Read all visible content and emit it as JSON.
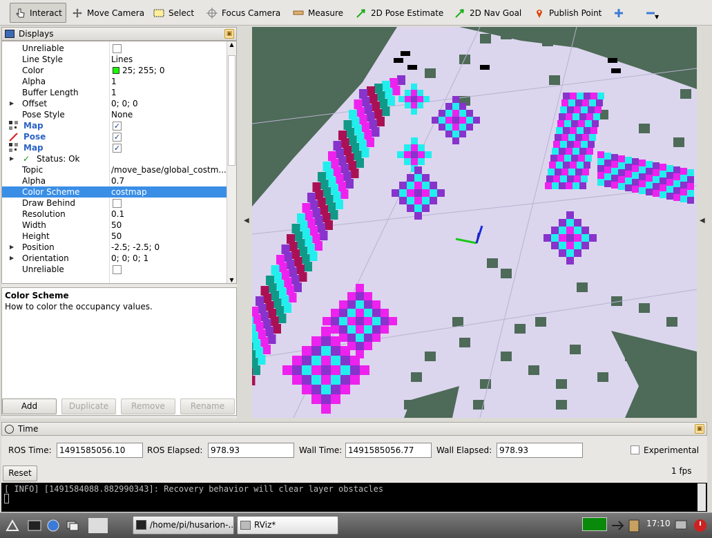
{
  "toolbar": {
    "items": [
      {
        "label": "Interact",
        "icon": "hand-cursor-icon",
        "active": true
      },
      {
        "label": "Move Camera",
        "icon": "move-camera-icon"
      },
      {
        "label": "Select",
        "icon": "select-box-icon"
      },
      {
        "label": "Focus Camera",
        "icon": "crosshair-icon"
      },
      {
        "label": "Measure",
        "icon": "ruler-icon"
      },
      {
        "label": "2D Pose Estimate",
        "icon": "green-arrow-icon"
      },
      {
        "label": "2D Nav Goal",
        "icon": "green-arrow-icon"
      },
      {
        "label": "Publish Point",
        "icon": "map-pin-icon"
      }
    ],
    "add_icon": "plus-icon",
    "remove_icon": "minus-icon"
  },
  "displays": {
    "title": "Displays",
    "rows": [
      {
        "label": "Unreliable",
        "type": "checkbox",
        "checked": false
      },
      {
        "label": "Line Style",
        "value": "Lines"
      },
      {
        "label": "Color",
        "value": "25; 255; 0",
        "swatch": "#19ff00"
      },
      {
        "label": "Alpha",
        "value": "1"
      },
      {
        "label": "Buffer Length",
        "value": "1"
      },
      {
        "label": "Offset",
        "value": "0; 0; 0",
        "expandable": true
      },
      {
        "label": "Pose Style",
        "value": "None"
      },
      {
        "label": "Map",
        "type": "checkbox",
        "checked": true,
        "display": true,
        "icon": "map-grid-icon"
      },
      {
        "label": "Pose",
        "type": "checkbox",
        "checked": true,
        "display": true,
        "icon": "pose-arrow-icon"
      },
      {
        "label": "Map",
        "type": "checkbox",
        "checked": true,
        "display": true,
        "icon": "map-grid-icon"
      },
      {
        "label": "Status: Ok",
        "expandable": true,
        "status": true
      },
      {
        "label": "Topic",
        "value": "/move_base/global_costm..."
      },
      {
        "label": "Alpha",
        "value": "0.7"
      },
      {
        "label": "Color Scheme",
        "value": "costmap",
        "selected": true
      },
      {
        "label": "Draw Behind",
        "type": "checkbox",
        "checked": false
      },
      {
        "label": "Resolution",
        "value": "0.1"
      },
      {
        "label": "Width",
        "value": "50"
      },
      {
        "label": "Height",
        "value": "50"
      },
      {
        "label": "Position",
        "value": "-2.5; -2.5; 0",
        "expandable": true
      },
      {
        "label": "Orientation",
        "value": "0; 0; 0; 1",
        "expandable": true
      },
      {
        "label": "Unreliable",
        "type": "checkbox",
        "checked": false
      }
    ],
    "description_title": "Color Scheme",
    "description_text": "How to color the occupancy values.",
    "buttons": {
      "add": "Add",
      "duplicate": "Duplicate",
      "remove": "Remove",
      "rename": "Rename"
    }
  },
  "time": {
    "title": "Time",
    "ros_time_label": "ROS Time:",
    "ros_time": "1491585056.10",
    "ros_elapsed_label": "ROS Elapsed:",
    "ros_elapsed": "978.93",
    "wall_time_label": "Wall Time:",
    "wall_time": "1491585056.77",
    "wall_elapsed_label": "Wall Elapsed:",
    "wall_elapsed": "978.93",
    "experimental_label": "Experimental",
    "reset_label": "Reset",
    "fps": "1 fps"
  },
  "console": {
    "line": "[ INFO] [1491584088.882990343]: Recovery behavior will clear layer obstacles"
  },
  "taskbar": {
    "terminal_task": "/home/pi/husarion-...",
    "rviz_task": "RViz*",
    "clock": "17:10"
  },
  "colors": {
    "costmap_magenta": "#ee22ee",
    "costmap_cyan": "#22eeee",
    "costmap_purple": "#8833cc",
    "costmap_teal": "#119988",
    "costmap_crimson": "#aa1155",
    "map_free": "#dbd6ee",
    "map_unknown": "#4e6a58",
    "selection": "#3a8ee6"
  }
}
